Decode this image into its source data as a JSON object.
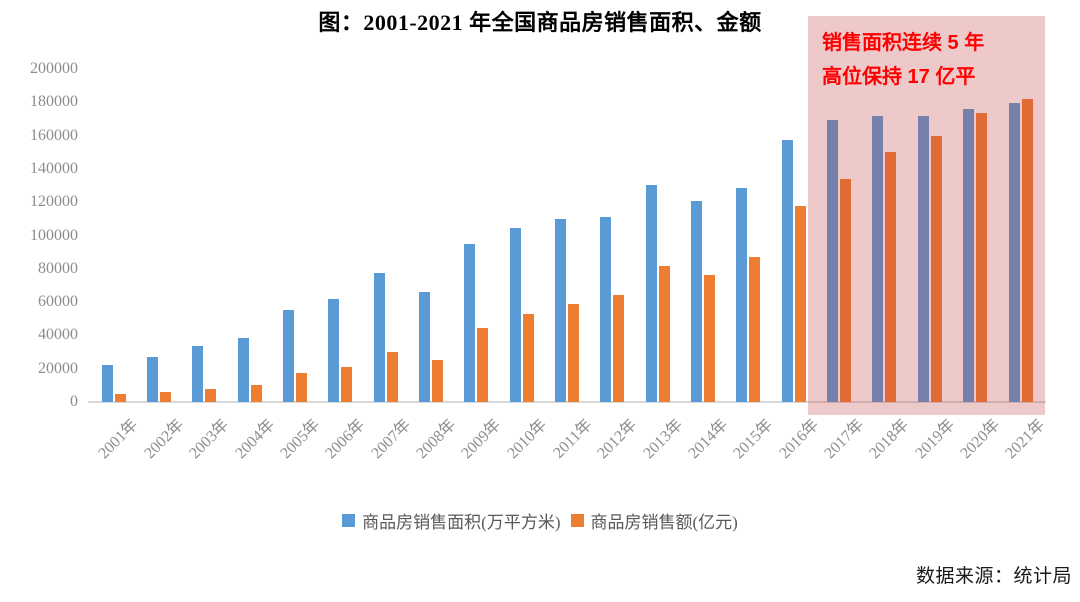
{
  "chart_data": {
    "type": "bar",
    "title": "图：2001-2021 年全国商品房销售面积、金额",
    "categories": [
      "2001年",
      "2002年",
      "2003年",
      "2004年",
      "2005年",
      "2006年",
      "2007年",
      "2008年",
      "2009年",
      "2010年",
      "2011年",
      "2012年",
      "2013年",
      "2014年",
      "2015年",
      "2016年",
      "2017年",
      "2018年",
      "2019年",
      "2020年",
      "2021年"
    ],
    "series": [
      {
        "name": "商品房销售面积(万平方米)",
        "color": "#5B9BD5",
        "values": [
          22412,
          26808,
          33718,
          38232,
          55486,
          61857,
          77355,
          65970,
          94755,
          104765,
          109946,
          111304,
          130551,
          120649,
          128495,
          157349,
          169408,
          171654,
          171558,
          176086,
          179433
        ]
      },
      {
        "name": "商品房销售额(亿元)",
        "color": "#ED7D31",
        "values": [
          4863,
          6032,
          7956,
          10376,
          17576,
          20826,
          29889,
          25068,
          44355,
          52721,
          59119,
          64456,
          81428,
          76292,
          87281,
          117627,
          133701,
          149973,
          159725,
          173613,
          181930
        ]
      }
    ],
    "ylim": [
      0,
      200000
    ],
    "yticks": [
      0,
      20000,
      40000,
      60000,
      80000,
      100000,
      120000,
      140000,
      160000,
      180000,
      200000
    ],
    "xlabel": "",
    "ylabel": "",
    "grid": false,
    "legend_position": "bottom",
    "highlight": {
      "from_category": "2017年",
      "to_category": "2021年",
      "fill_color": "rgba(192,60,66,0.28)"
    }
  },
  "annotation": {
    "line1": "销售面积连续 5 年",
    "line2": "高位保持 17 亿平",
    "color": "#FF0000"
  },
  "legend": [
    {
      "label": "商品房销售面积(万平方米)",
      "color": "#5B9BD5"
    },
    {
      "label": "商品房销售额(亿元)",
      "color": "#ED7D31"
    }
  ],
  "source": "数据来源：统计局",
  "axis": {
    "tick_color": "#8C8C8C",
    "baseline_color": "#D9D9D9"
  }
}
